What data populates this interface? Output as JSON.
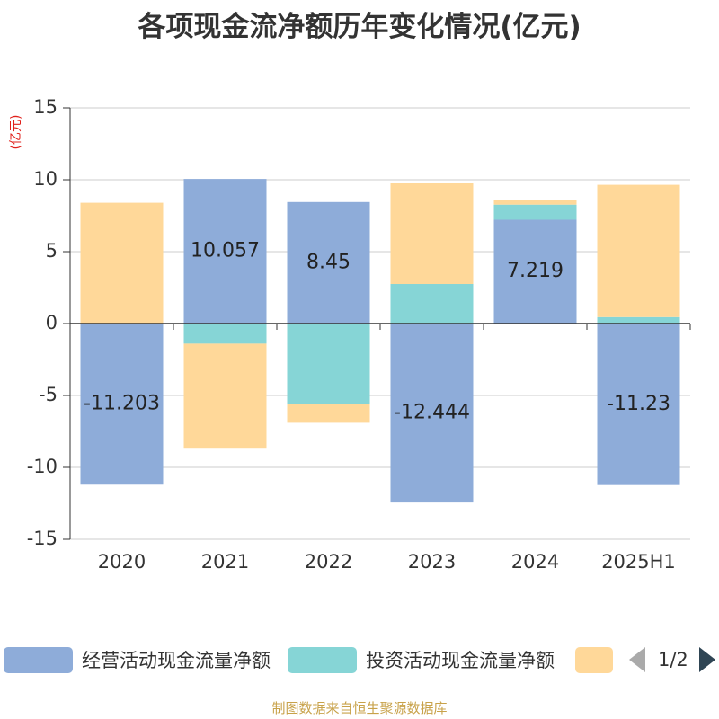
{
  "title": "各项现金流净额历年变化情况(亿元)",
  "footer": "制图数据来自恒生聚源数据库",
  "legend_pager": "1/2",
  "colors": {
    "operating": "#8eacd9",
    "investing": "#86d5d6",
    "financing": "#ffd899",
    "axis": "#333333",
    "grid": "#cccccc",
    "unit": "#e0201b"
  },
  "chart_data": {
    "type": "bar",
    "stacked": true,
    "ylabel": "(亿元)",
    "ylim": [
      -15,
      15
    ],
    "yticks": [
      -15,
      -10,
      -5,
      0,
      5,
      10,
      15
    ],
    "grid": true,
    "legend_position": "bottom",
    "categories": [
      "2020",
      "2021",
      "2022",
      "2023",
      "2024",
      "2025H1"
    ],
    "series": [
      {
        "name": "经营活动现金流量净额",
        "color_key": "operating",
        "values": [
          -11.203,
          10.057,
          8.45,
          -12.444,
          7.219,
          -11.23
        ],
        "labels": [
          "-11.203",
          "10.057",
          "8.45",
          "-12.444",
          "7.219",
          "-11.23"
        ]
      },
      {
        "name": "投资活动现金流量净额",
        "color_key": "investing",
        "values": [
          0,
          -1.4,
          -5.6,
          2.75,
          1.05,
          0.45
        ],
        "labels": null
      },
      {
        "color_key": "financing",
        "values": [
          8.4,
          -7.3,
          -1.3,
          7.0,
          0.35,
          9.2
        ],
        "labels": null
      }
    ]
  }
}
